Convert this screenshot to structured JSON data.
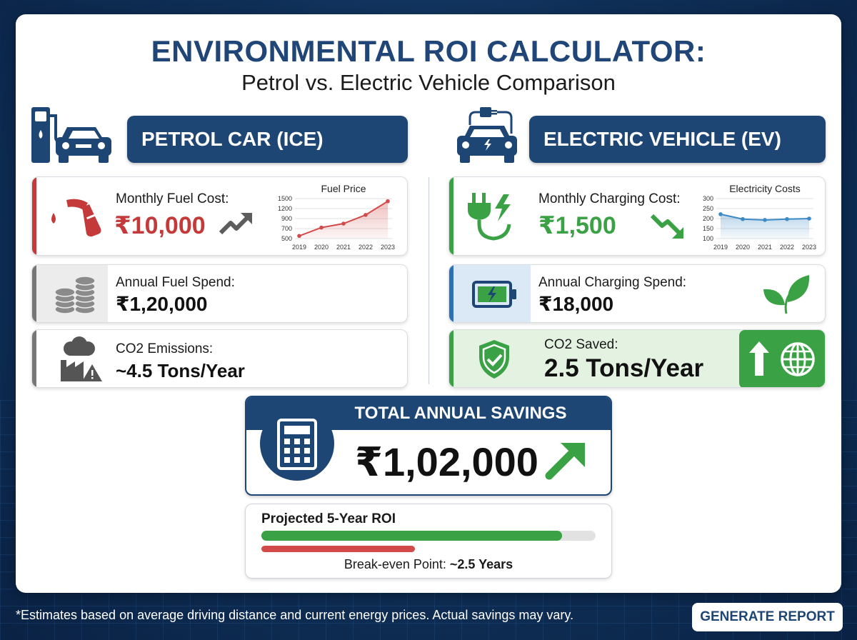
{
  "title": "ENVIRONMENTAL ROI CALCULATOR:",
  "subtitle": "Petrol vs. Electric Vehicle Comparison",
  "petrol": {
    "header": "PETROL CAR (ICE)",
    "monthly_label": "Monthly Fuel Cost:",
    "monthly_value": "₹10,000",
    "annual_label": "Annual Fuel Spend:",
    "annual_value": "₹1,20,000",
    "co2_label": "CO2 Emissions:",
    "co2_value": "~4.5 Tons/Year"
  },
  "ev": {
    "header": "ELECTRIC VEHICLE (EV)",
    "monthly_label": "Monthly Charging Cost:",
    "monthly_value": "₹1,500",
    "annual_label": "Annual Charging Spend:",
    "annual_value": "₹18,000",
    "co2_label": "CO2 Saved:",
    "co2_value": "2.5 Tons/Year"
  },
  "savings": {
    "label": "TOTAL ANNUAL SAVINGS",
    "value": "₹1,02,000"
  },
  "roi": {
    "label": "Projected 5-Year ROI",
    "ev_progress": 0.9,
    "petrol_progress": 0.46,
    "breakeven_label": "Break-even Point:",
    "breakeven_value": "~2.5 Years"
  },
  "footnote": "*Estimates based on average driving distance and current energy prices. Actual savings may vary.",
  "button_label": "GENERATE REPORT",
  "colors": {
    "navy": "#1e4675",
    "petrol_red": "#c43a3a",
    "ev_green": "#3aa245",
    "text": "#111111"
  },
  "chart_data": [
    {
      "type": "area",
      "title": "Fuel Price",
      "x": [
        "2019",
        "2020",
        "2021",
        "2022",
        "2023"
      ],
      "values": [
        430,
        680,
        800,
        1060,
        1470
      ],
      "yticks": [
        "1500",
        "1200",
        "900",
        "700",
        "500"
      ],
      "ylim": [
        350,
        1550
      ],
      "color": "#d24a4a"
    },
    {
      "type": "area",
      "title": "Electricity Costs",
      "x": [
        "2019",
        "2020",
        "2021",
        "2022",
        "2023"
      ],
      "values": [
        220,
        192,
        187,
        192,
        195
      ],
      "yticks": [
        "300",
        "250",
        "200",
        "150",
        "100"
      ],
      "ylim": [
        80,
        310
      ],
      "color": "#3d8ac4"
    }
  ]
}
